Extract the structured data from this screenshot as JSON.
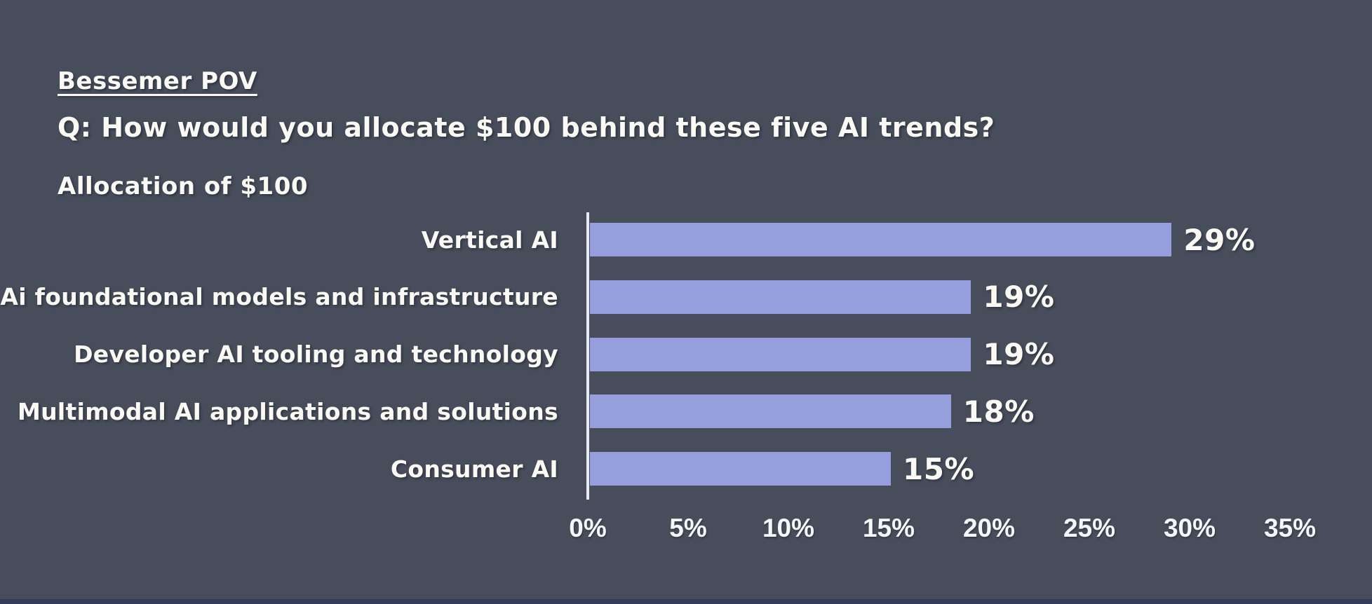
{
  "colors": {
    "background": "#474D5B",
    "bar": "#969FDE",
    "text": "#FAF9F4",
    "axis_line": "#E9EAF4",
    "bottom_strip": "#333C58"
  },
  "header": {
    "eyebrow": "Bessemer POV",
    "question": "Q: How would you allocate $100 behind these five AI trends?",
    "subtitle": "Allocation of $100"
  },
  "chart_data": {
    "type": "bar",
    "orientation": "horizontal",
    "title": "Allocation of $100",
    "categories": [
      "Vertical AI",
      "Ai foundational models and infrastructure",
      "Developer AI tooling and technology",
      "Multimodal AI applications and solutions",
      "Consumer AI"
    ],
    "values": [
      29,
      19,
      19,
      18,
      15
    ],
    "value_labels": [
      "29%",
      "19%",
      "19%",
      "18%",
      "15%"
    ],
    "x_ticks": [
      "0%",
      "5%",
      "10%",
      "15%",
      "20%",
      "25%",
      "30%",
      "35%"
    ],
    "x_tick_values": [
      0,
      5,
      10,
      15,
      20,
      25,
      30,
      35
    ],
    "xlim": [
      0,
      35
    ],
    "xlabel": "",
    "ylabel": "",
    "grid": "off",
    "legend": "none"
  }
}
